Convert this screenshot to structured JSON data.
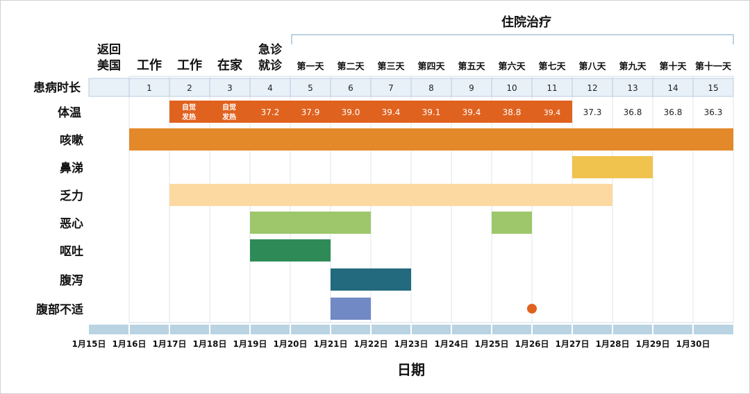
{
  "chart_data": {
    "type": "gantt",
    "xlabel": "日期",
    "hospital_label": "住院治疗",
    "day_row_label": "患病时长",
    "phases": [
      "返回美国",
      "工作",
      "工作",
      "在家",
      "急诊就诊"
    ],
    "hospital_days": [
      "第一天",
      "第二天",
      "第三天",
      "第四天",
      "第五天",
      "第六天",
      "第七天",
      "第八天",
      "第九天",
      "第十天",
      "第十一天"
    ],
    "day_numbers": [
      "1",
      "2",
      "3",
      "4",
      "5",
      "6",
      "7",
      "8",
      "9",
      "10",
      "11",
      "12",
      "13",
      "14",
      "15"
    ],
    "dates": [
      "1月15日",
      "1月16日",
      "1月17日",
      "1月18日",
      "1月19日",
      "1月20日",
      "1月21日",
      "1月22日",
      "1月23日",
      "1月24日",
      "1月25日",
      "1月26日",
      "1月27日",
      "1月28日",
      "1月29日",
      "1月30日"
    ],
    "temperature": {
      "label": "体温",
      "self_reported_note": "自觉发热",
      "values": [
        null,
        "自觉发热",
        "自觉发热",
        "37.2",
        "37.9",
        "39.0",
        "39.4",
        "39.1",
        "39.4",
        "38.8",
        "39.4",
        "37.3",
        "36.8",
        "36.8",
        "36.3"
      ],
      "fever_bar_days": [
        2,
        11
      ],
      "color": "#E0621F"
    },
    "symptoms": [
      {
        "name": "咳嗽",
        "start": "1月16日",
        "end": "1月31日",
        "color": "#E3892A"
      },
      {
        "name": "鼻涕",
        "start": "1月27日",
        "end": "1月29日",
        "color": "#F0C24E"
      },
      {
        "name": "乏力",
        "start": "1月17日",
        "end": "1月28日",
        "color": "#FBD9A0"
      },
      {
        "name": "恶心",
        "start": "1月19日",
        "end": "1月22日",
        "color": "#9DC76A",
        "extra": {
          "start": "1月25日",
          "end": "1月26日"
        }
      },
      {
        "name": "呕吐",
        "start": "1月19日",
        "end": "1月21日",
        "color": "#2E8B57"
      },
      {
        "name": "腹泻",
        "start": "1月21日",
        "end": "1月23日",
        "color": "#236A7E"
      },
      {
        "name": "腹部不适",
        "start": "1月21日",
        "end": "1月22日",
        "color": "#7189C4",
        "point": "1月26日",
        "point_color": "#E0621F"
      }
    ]
  }
}
